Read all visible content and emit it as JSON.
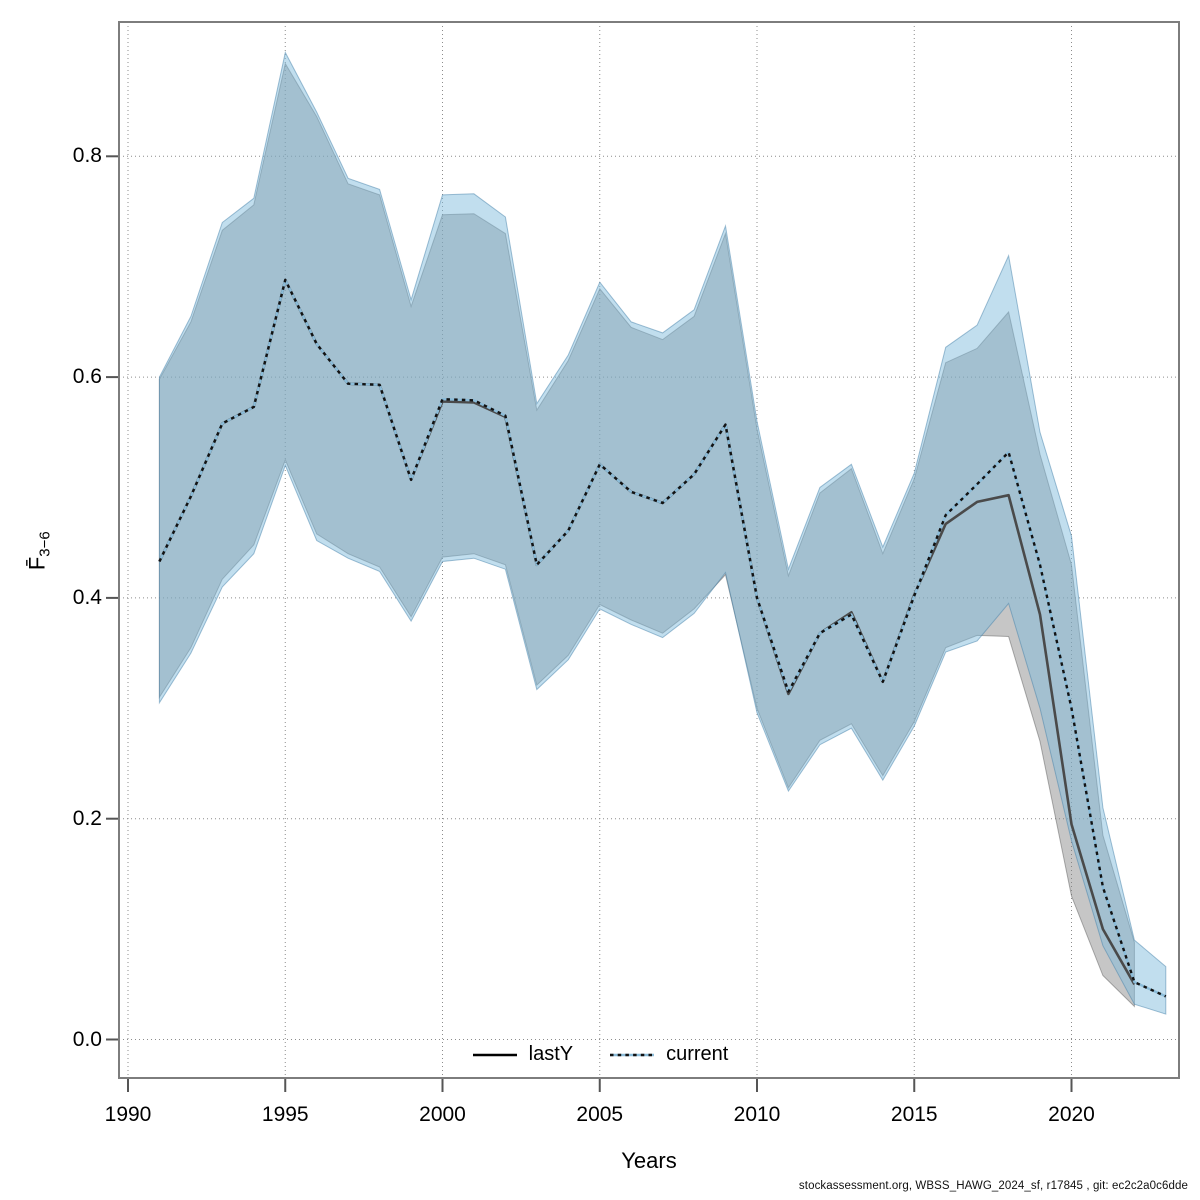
{
  "axes": {
    "x": {
      "label": "Years",
      "ticks": [
        1990,
        1995,
        2000,
        2005,
        2010,
        2015,
        2020
      ]
    },
    "y": {
      "label_main": "F̄",
      "label_sub": "3−6",
      "ticks": [
        "0.0",
        "0.2",
        "0.4",
        "0.6",
        "0.8"
      ],
      "tick_values": [
        0.0,
        0.2,
        0.4,
        0.6,
        0.8
      ]
    }
  },
  "legend": {
    "items": [
      {
        "label": "lastY",
        "line_style": "solid",
        "color": "#000000"
      },
      {
        "label": "current",
        "line_style": "dotted",
        "color": "#4d94bd"
      }
    ]
  },
  "footer": {
    "text": "stockassessment.org, WBSS_HAWG_2024_sf, r17845 , git: ec2c2a0c6dde"
  },
  "colors": {
    "lasty_band": "rgba(128,128,128,0.45)",
    "current_band": "rgba(125,185,220,0.48)",
    "lasty_line": "#4a4a4a",
    "current_line_under": "#8bbcd9",
    "current_line_dash": "#121212",
    "grid": "#8c8c8c",
    "box": "#7d7d7d"
  },
  "chart_data": {
    "type": "line",
    "title": "",
    "xlabel": "Years",
    "ylabel": "F̄ 3−6",
    "grid": true,
    "legend_position": "bottom center inside",
    "xlim": [
      1989.7,
      2023.6
    ],
    "ylim": [
      -0.035,
      0.92
    ],
    "x": [
      1991,
      1992,
      1993,
      1994,
      1995,
      1996,
      1997,
      1998,
      1999,
      2000,
      2001,
      2002,
      2003,
      2004,
      2005,
      2006,
      2007,
      2008,
      2009,
      2010,
      2011,
      2012,
      2013,
      2014,
      2015,
      2016,
      2017,
      2018,
      2019,
      2020,
      2021,
      2022,
      2023
    ],
    "series": [
      {
        "name": "lastY",
        "line": "solid black, gray confidence band",
        "values": [
          0.433,
          0.492,
          0.558,
          0.573,
          0.688,
          0.63,
          0.594,
          0.593,
          0.507,
          0.578,
          0.577,
          0.564,
          0.43,
          0.461,
          0.521,
          0.496,
          0.486,
          0.512,
          0.557,
          0.4,
          0.313,
          0.368,
          0.387,
          0.324,
          0.403,
          0.467,
          0.487,
          0.493,
          0.385,
          0.195,
          0.1,
          0.05,
          null
        ],
        "ci_lo": [
          0.31,
          0.355,
          0.417,
          0.448,
          0.525,
          0.458,
          0.44,
          0.428,
          0.383,
          0.437,
          0.44,
          0.43,
          0.321,
          0.348,
          0.394,
          0.38,
          0.368,
          0.39,
          0.421,
          0.3,
          0.228,
          0.271,
          0.286,
          0.239,
          0.288,
          0.355,
          0.366,
          0.365,
          0.27,
          0.13,
          0.058,
          0.03,
          null
        ],
        "ci_hi": [
          0.598,
          0.65,
          0.733,
          0.756,
          0.884,
          0.836,
          0.775,
          0.765,
          0.664,
          0.747,
          0.748,
          0.73,
          0.57,
          0.615,
          0.68,
          0.645,
          0.634,
          0.655,
          0.73,
          0.553,
          0.42,
          0.495,
          0.517,
          0.44,
          0.508,
          0.613,
          0.626,
          0.659,
          0.53,
          0.43,
          0.185,
          0.088,
          null
        ]
      },
      {
        "name": "current",
        "line": "black dashed over light blue, light-blue confidence band",
        "values": [
          0.433,
          0.492,
          0.558,
          0.573,
          0.688,
          0.63,
          0.594,
          0.593,
          0.507,
          0.58,
          0.579,
          0.565,
          0.43,
          0.461,
          0.521,
          0.496,
          0.486,
          0.512,
          0.557,
          0.4,
          0.315,
          0.368,
          0.385,
          0.324,
          0.402,
          0.475,
          0.503,
          0.532,
          0.43,
          0.3,
          0.138,
          0.052,
          0.039
        ],
        "ci_lo": [
          0.305,
          0.35,
          0.41,
          0.44,
          0.52,
          0.452,
          0.436,
          0.424,
          0.379,
          0.433,
          0.436,
          0.426,
          0.317,
          0.344,
          0.39,
          0.376,
          0.364,
          0.386,
          0.423,
          0.296,
          0.225,
          0.267,
          0.282,
          0.235,
          0.284,
          0.351,
          0.361,
          0.395,
          0.3,
          0.18,
          0.085,
          0.032,
          0.023
        ],
        "ci_hi": [
          0.6,
          0.655,
          0.74,
          0.762,
          0.894,
          0.84,
          0.78,
          0.77,
          0.67,
          0.765,
          0.766,
          0.745,
          0.576,
          0.62,
          0.686,
          0.65,
          0.64,
          0.661,
          0.737,
          0.56,
          0.426,
          0.5,
          0.521,
          0.446,
          0.513,
          0.627,
          0.647,
          0.71,
          0.55,
          0.456,
          0.21,
          0.09,
          0.066
        ]
      }
    ]
  }
}
